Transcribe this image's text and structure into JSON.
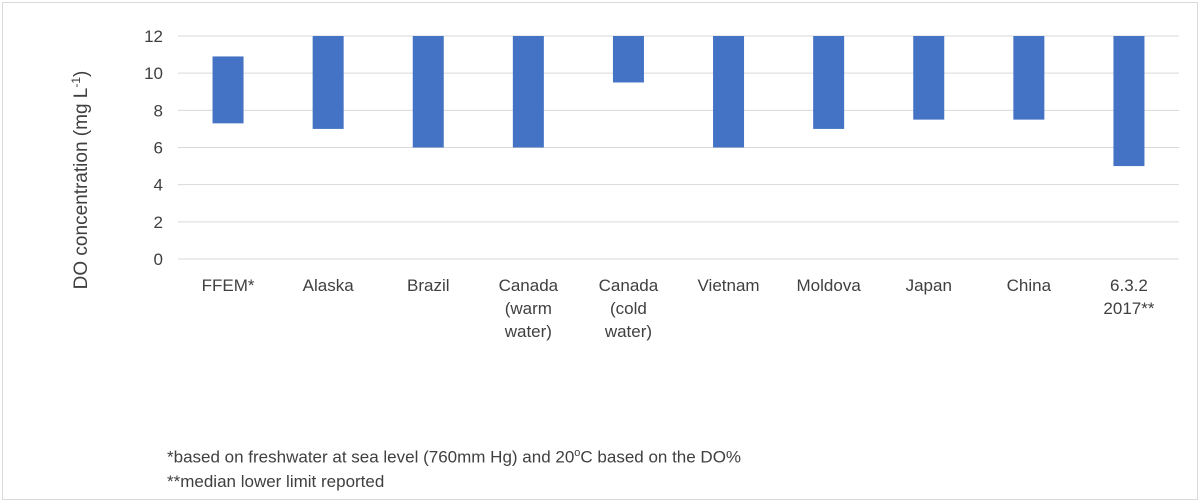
{
  "chart_data": {
    "type": "bar",
    "bar_style": "floating-range",
    "ylabel_parts": {
      "prefix": "DO concentration (mg L",
      "superscript": "-1",
      "suffix": ")"
    },
    "ylim": [
      0,
      12
    ],
    "yticks": [
      0,
      2,
      4,
      6,
      8,
      10,
      12
    ],
    "grid": "horizontal",
    "legend": "none",
    "bar_color": "#4472c4",
    "categories": [
      {
        "lines": [
          "FFEM*"
        ],
        "low": 7.3,
        "high": 10.9
      },
      {
        "lines": [
          "Alaska"
        ],
        "low": 7.0,
        "high": 12.0
      },
      {
        "lines": [
          "Brazil"
        ],
        "low": 6.0,
        "high": 12.0
      },
      {
        "lines": [
          "Canada",
          "(warm",
          "water)"
        ],
        "low": 6.0,
        "high": 12.0
      },
      {
        "lines": [
          "Canada",
          "(cold",
          "water)"
        ],
        "low": 9.5,
        "high": 12.0
      },
      {
        "lines": [
          "Vietnam"
        ],
        "low": 6.0,
        "high": 12.0
      },
      {
        "lines": [
          "Moldova"
        ],
        "low": 7.0,
        "high": 12.0
      },
      {
        "lines": [
          "Japan"
        ],
        "low": 7.5,
        "high": 12.0
      },
      {
        "lines": [
          "China"
        ],
        "low": 7.5,
        "high": 12.0
      },
      {
        "lines": [
          "6.3.2",
          "2017**"
        ],
        "low": 5.0,
        "high": 12.0
      }
    ]
  },
  "notes": {
    "note1_before": "*based on freshwater at sea level (760mm Hg) and 20",
    "note1_sup": "o",
    "note1_after": "C based on the DO%",
    "note2": "**median lower limit reported"
  }
}
